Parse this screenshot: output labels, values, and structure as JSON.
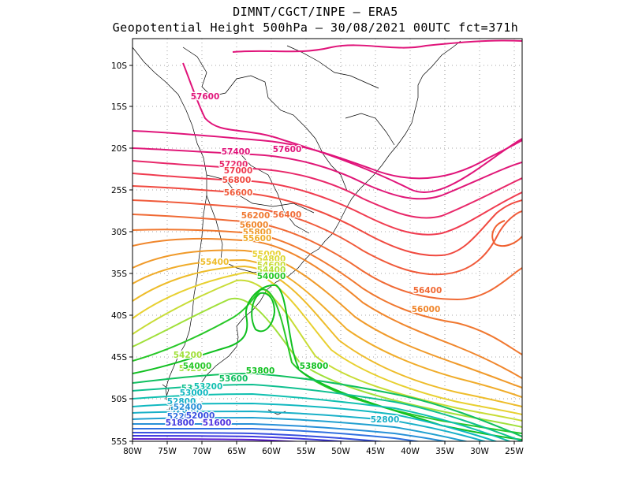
{
  "title": {
    "line1": "DIMNT/CGCT/INPE –  ERA5",
    "line2": "Geopotential Height 500hPa –  30/08/2021 00UTC fct=371h"
  },
  "axes": {
    "lat_labels": [
      "10S",
      "15S",
      "20S",
      "25S",
      "30S",
      "35S",
      "40S",
      "45S",
      "50S",
      "55S"
    ],
    "lon_labels": [
      "80W",
      "75W",
      "70W",
      "65W",
      "60W",
      "55W",
      "50W",
      "45W",
      "40W",
      "35W",
      "30W",
      "25W"
    ]
  },
  "contour_labels": [
    {
      "text": "57600",
      "color": "#e0147a"
    },
    {
      "text": "57600",
      "color": "#e0147a"
    },
    {
      "text": "57400",
      "color": "#e0147a"
    },
    {
      "text": "57200",
      "color": "#e8286a"
    },
    {
      "text": "57000",
      "color": "#f03c50"
    },
    {
      "text": "56800",
      "color": "#f04a40"
    },
    {
      "text": "56600",
      "color": "#f05a3a"
    },
    {
      "text": "56400",
      "color": "#f06a35"
    },
    {
      "text": "56400",
      "color": "#f06a35"
    },
    {
      "text": "56200",
      "color": "#f07830"
    },
    {
      "text": "56000",
      "color": "#f0862c"
    },
    {
      "text": "56000",
      "color": "#f0862c"
    },
    {
      "text": "55800",
      "color": "#f09a2a"
    },
    {
      "text": "55600",
      "color": "#f0ac2a"
    },
    {
      "text": "55400",
      "color": "#eebc2a"
    },
    {
      "text": "55000",
      "color": "#e8d030"
    },
    {
      "text": "54800",
      "color": "#dcd834"
    },
    {
      "text": "54600",
      "color": "#c8dc36"
    },
    {
      "text": "54400",
      "color": "#b4e036"
    },
    {
      "text": "54200",
      "color": "#a0e03a"
    },
    {
      "text": "54200",
      "color": "#a0e03a"
    },
    {
      "text": "54000",
      "color": "#28c828"
    },
    {
      "text": "54000",
      "color": "#28c828"
    },
    {
      "text": "53800",
      "color": "#10c020"
    },
    {
      "text": "53800",
      "color": "#10c020"
    },
    {
      "text": "53600",
      "color": "#10c060"
    },
    {
      "text": "53400",
      "color": "#10c090"
    },
    {
      "text": "53200",
      "color": "#10c0b0"
    },
    {
      "text": "53000",
      "color": "#10b8c0"
    },
    {
      "text": "52800",
      "color": "#18b0c8"
    },
    {
      "text": "52800",
      "color": "#18b0c8"
    },
    {
      "text": "52600",
      "color": "#20a0d0"
    },
    {
      "text": "52400",
      "color": "#2890d8"
    },
    {
      "text": "52200",
      "color": "#3070e0"
    },
    {
      "text": "52000",
      "color": "#3850e0"
    },
    {
      "text": "51800",
      "color": "#4038e0"
    },
    {
      "text": "51600",
      "color": "#5030e0"
    }
  ]
}
